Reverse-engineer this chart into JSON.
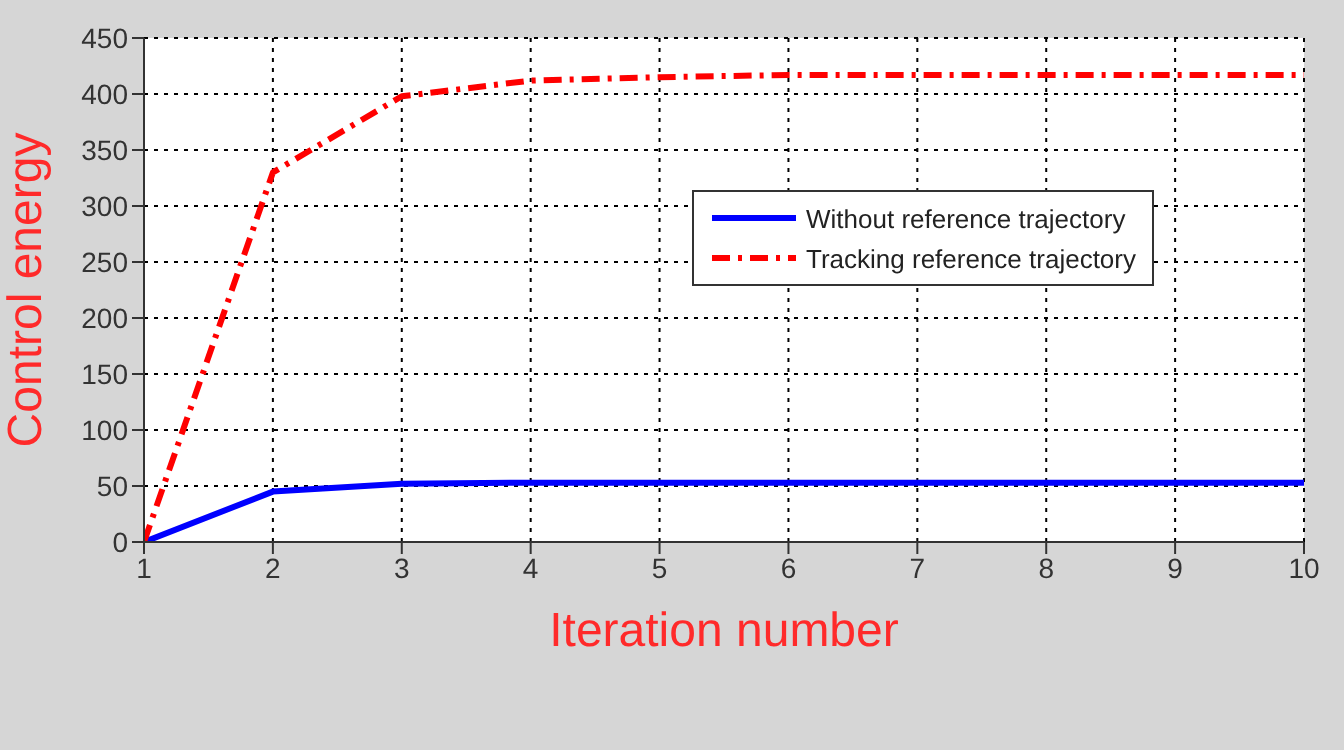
{
  "chart_data": {
    "type": "line",
    "xlabel": "Iteration number",
    "ylabel": "Control energy",
    "x": [
      1,
      2,
      3,
      4,
      5,
      6,
      7,
      8,
      9,
      10
    ],
    "series": [
      {
        "name": "Without reference trajectory",
        "color": "#0000ff",
        "line_style": "solid",
        "values": [
          0,
          45,
          52,
          53,
          53,
          53,
          53,
          53,
          53,
          53
        ]
      },
      {
        "name": "Tracking reference trajectory",
        "color": "#ff0000",
        "line_style": "dashdot",
        "values": [
          0,
          330,
          398,
          412,
          415,
          417,
          417,
          417,
          417,
          417
        ]
      }
    ],
    "xlim": [
      1,
      10
    ],
    "xticks": [
      1,
      2,
      3,
      4,
      5,
      6,
      7,
      8,
      9,
      10
    ],
    "ylim": [
      0,
      450
    ],
    "yticks": [
      0,
      50,
      100,
      150,
      200,
      250,
      300,
      350,
      400,
      450
    ],
    "grid": true,
    "legend": "top right",
    "marker": "none"
  }
}
